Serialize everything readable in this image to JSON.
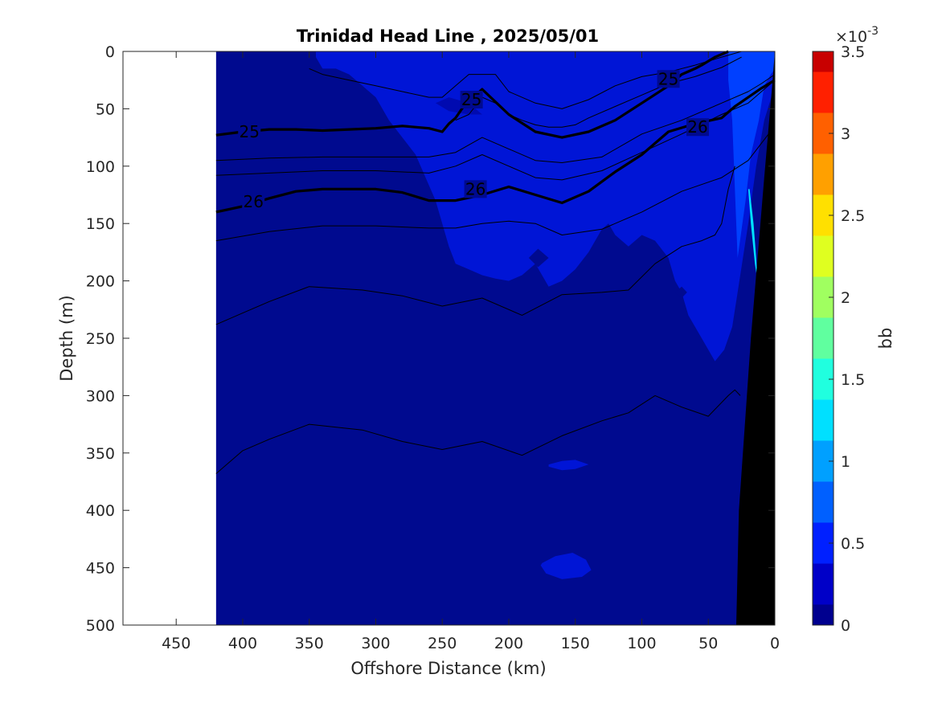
{
  "chart_data": {
    "type": "heatmap",
    "title": "Trinidad Head Line , 2025/05/01",
    "xlabel": "Offshore Distance (km)",
    "ylabel": "Depth (m)",
    "xlim": [
      490,
      0
    ],
    "ylim": [
      500,
      0
    ],
    "x_ticks": [
      "450",
      "400",
      "350",
      "300",
      "250",
      "200",
      "150",
      "100",
      "50",
      "0"
    ],
    "y_ticks": [
      "0",
      "50",
      "100",
      "150",
      "200",
      "250",
      "300",
      "350",
      "400",
      "450",
      "500"
    ],
    "grid": false,
    "data_extent_km": [
      420,
      0
    ],
    "colorbar": {
      "label": "bb",
      "exponent_label": "×10",
      "exponent_power": "-3",
      "scale": 0.001,
      "range": [
        0,
        3.5
      ],
      "ticks": [
        "0",
        "0.5",
        "1",
        "1.5",
        "2",
        "2.5",
        "3",
        "3.5"
      ],
      "colors": [
        "#00008f",
        "#0000c8",
        "#0020ff",
        "#0060ff",
        "#00a0ff",
        "#00e0ff",
        "#20ffdf",
        "#60ff9f",
        "#a0ff60",
        "#dfff20",
        "#ffe000",
        "#ffa000",
        "#ff6000",
        "#ff2000",
        "#c80000"
      ]
    },
    "background_level_color": "#000a8f",
    "patches": [
      {
        "name": "surface-shelf-patch",
        "level": "0.25-0.5",
        "color": "#0015d6"
      },
      {
        "name": "nearshore-upwelling-patch",
        "level": "0.5-0.75",
        "color": "#0040ff"
      },
      {
        "name": "nearshore-bright-strip",
        "level": "1.25-1.5",
        "color": "#00e0ff"
      },
      {
        "name": "deep-blob-350m",
        "level": "0.25-0.5",
        "color": "#0015d6"
      },
      {
        "name": "deep-blob-450m",
        "level": "0.25-0.5",
        "color": "#0015d6"
      }
    ],
    "contours": [
      {
        "label": "25",
        "bold": true,
        "x_km": [
          420,
          400,
          380,
          360,
          340,
          320,
          300,
          280,
          260,
          250,
          245,
          240,
          234,
          220,
          200,
          180,
          160,
          140,
          120,
          100,
          80,
          70,
          60,
          55,
          45,
          35
        ],
        "depth_m": [
          73,
          70,
          68,
          68,
          69,
          68,
          67,
          65,
          67,
          70,
          63,
          58,
          48,
          33,
          55,
          70,
          75,
          70,
          60,
          45,
          30,
          20,
          15,
          12,
          5,
          0
        ]
      },
      {
        "label": "26",
        "bold": true,
        "x_km": [
          420,
          400,
          380,
          360,
          340,
          320,
          300,
          280,
          260,
          240,
          220,
          200,
          180,
          160,
          140,
          120,
          100,
          80,
          60,
          40,
          30,
          20,
          10,
          0
        ],
        "depth_m": [
          140,
          135,
          128,
          122,
          120,
          120,
          120,
          123,
          130,
          130,
          125,
          118,
          125,
          132,
          122,
          105,
          90,
          70,
          63,
          58,
          48,
          40,
          32,
          25
        ]
      },
      {
        "label": "",
        "bold": false,
        "x_km": [
          420,
          380,
          340,
          300,
          260,
          240,
          220,
          200,
          180,
          160,
          130,
          100,
          70,
          40,
          20,
          10,
          0
        ],
        "depth_m": [
          95,
          93,
          92,
          92,
          92,
          88,
          75,
          85,
          95,
          97,
          92,
          72,
          60,
          45,
          35,
          28,
          20
        ]
      },
      {
        "label": "",
        "bold": false,
        "x_km": [
          420,
          380,
          340,
          300,
          260,
          240,
          220,
          200,
          180,
          160,
          130,
          100,
          70,
          40,
          20,
          10,
          0
        ],
        "depth_m": [
          108,
          106,
          104,
          104,
          106,
          100,
          90,
          100,
          110,
          112,
          104,
          88,
          72,
          55,
          45,
          35,
          25
        ]
      },
      {
        "label": "",
        "bold": false,
        "x_km": [
          420,
          380,
          340,
          300,
          260,
          240,
          220,
          200,
          180,
          160,
          130,
          100,
          70,
          40,
          20,
          10,
          0
        ],
        "depth_m": [
          165,
          157,
          152,
          152,
          154,
          154,
          150,
          148,
          150,
          160,
          155,
          140,
          122,
          110,
          95,
          80,
          65
        ]
      },
      {
        "label": "",
        "bold": false,
        "x_km": [
          420,
          400,
          380,
          350,
          310,
          280,
          250,
          220,
          190,
          160,
          130,
          110,
          90,
          70,
          55,
          45,
          40,
          35,
          30
        ],
        "depth_m": [
          238,
          228,
          218,
          205,
          208,
          213,
          222,
          215,
          230,
          212,
          210,
          208,
          185,
          170,
          165,
          160,
          150,
          120,
          100
        ]
      },
      {
        "label": "",
        "bold": false,
        "x_km": [
          420,
          400,
          380,
          350,
          310,
          280,
          250,
          220,
          190,
          160,
          130,
          110,
          90,
          70,
          50,
          35,
          30,
          26
        ],
        "depth_m": [
          368,
          348,
          338,
          325,
          330,
          340,
          347,
          340,
          352,
          335,
          322,
          315,
          300,
          310,
          318,
          300,
          295,
          300
        ]
      },
      {
        "label": "",
        "bold": false,
        "x_km": [
          350,
          340,
          320,
          300,
          280,
          260,
          250,
          240,
          230,
          210,
          200,
          180,
          160,
          140,
          120,
          100,
          80,
          60,
          40,
          25
        ],
        "depth_m": [
          15,
          20,
          25,
          30,
          35,
          40,
          40,
          30,
          20,
          20,
          35,
          45,
          50,
          42,
          30,
          22,
          18,
          12,
          5,
          0
        ]
      },
      {
        "label": "",
        "bold": false,
        "x_km": [
          240,
          230,
          220,
          210,
          200,
          190,
          180,
          170,
          160,
          150,
          140,
          120,
          100,
          80,
          60,
          40,
          25
        ],
        "depth_m": [
          60,
          55,
          40,
          45,
          55,
          60,
          64,
          66,
          66,
          64,
          58,
          48,
          38,
          28,
          22,
          14,
          5
        ]
      }
    ],
    "contour_label_positions": [
      {
        "text": "25",
        "x_km": 395,
        "depth_m": 70
      },
      {
        "text": "25",
        "x_km": 228,
        "depth_m": 42
      },
      {
        "text": "25",
        "x_km": 80,
        "depth_m": 24
      },
      {
        "text": "26",
        "x_km": 392,
        "depth_m": 131
      },
      {
        "text": "26",
        "x_km": 225,
        "depth_m": 120
      },
      {
        "text": "26",
        "x_km": 58,
        "depth_m": 66
      }
    ],
    "bathymetry": {
      "color": "#000000",
      "x_km": [
        0,
        0,
        29,
        27,
        18,
        8,
        2
      ],
      "depth_m": [
        0,
        500,
        500,
        400,
        250,
        110,
        30
      ]
    }
  }
}
